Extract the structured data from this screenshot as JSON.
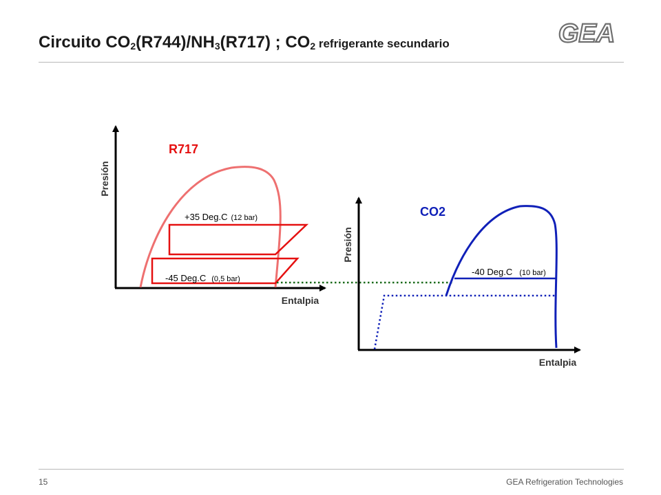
{
  "header": {
    "title_a": "Circuito CO",
    "title_a_sub": "2",
    "title_b": "(R744)/NH",
    "title_b_sub": "3",
    "title_c": "(R717) ; CO",
    "title_c_sub": "2",
    "title_d": " refrigerante secundario",
    "logo_text": "GEA"
  },
  "footer": {
    "page_number": "15",
    "brand": "GEA Refrigeration  Technologies"
  },
  "colors": {
    "r717_dome": "#ee7070",
    "r717_cycle": "#e51010",
    "co2": "#1020b8",
    "link": "#1a6a1a"
  },
  "diagram_left": {
    "name": "R717",
    "ylabel": "Presión",
    "xlabel": "Entalpia",
    "high_temp": "+35 Deg.C",
    "high_pressure": "(12 bar)",
    "low_temp": "-45 Deg.C",
    "low_pressure": "(0,5 bar)"
  },
  "diagram_right": {
    "name": "CO2",
    "ylabel": "Presión",
    "xlabel": "Entalpia",
    "temp": "-40 Deg.C",
    "pressure": "(10 bar)"
  }
}
